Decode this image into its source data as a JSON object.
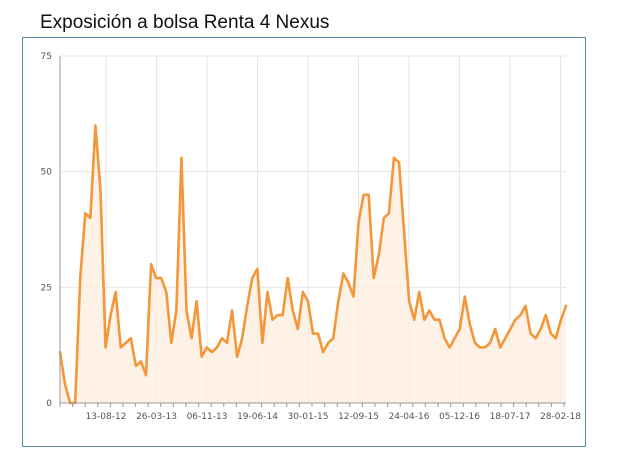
{
  "header": {
    "title": "Exposición a bolsa Renta 4 Nexus"
  },
  "colors": {
    "line": "#f4963a",
    "fill": "#fdeede",
    "grid": "#e6e6e6",
    "axis": "#9a9a9a"
  },
  "chart_data": {
    "type": "area",
    "title": "Exposición a bolsa Renta 4 Nexus",
    "xlabel": "",
    "ylabel": "",
    "ylim": [
      0,
      75
    ],
    "yticks": [
      0,
      25,
      50,
      75
    ],
    "xtick_labels": [
      "13-08-12",
      "26-03-13",
      "06-11-13",
      "19-06-14",
      "30-01-15",
      "12-09-15",
      "24-04-16",
      "05-12-16",
      "18-07-17",
      "28-02-18"
    ],
    "grid": true,
    "series": [
      {
        "values": [
          11,
          4,
          0,
          0,
          27,
          41,
          40,
          60,
          46,
          12,
          19,
          24,
          12,
          13,
          14,
          8,
          9,
          6,
          30,
          27,
          27,
          24,
          13,
          20,
          53,
          20,
          14,
          22,
          10,
          12,
          11,
          12,
          14,
          13,
          20,
          10,
          14,
          21,
          27,
          29,
          13,
          24,
          18,
          19,
          19,
          27,
          20,
          16,
          24,
          22,
          15,
          15,
          11,
          13,
          14,
          22,
          28,
          26,
          23,
          39,
          45,
          45,
          27,
          32,
          40,
          41,
          53,
          52,
          37,
          22,
          18,
          24,
          18,
          20,
          18,
          18,
          14,
          12,
          14,
          16,
          23,
          17,
          13,
          12,
          12,
          13,
          16,
          12,
          14,
          16,
          18,
          19,
          21,
          15,
          14,
          16,
          19,
          15,
          14,
          18,
          21
        ]
      }
    ]
  }
}
